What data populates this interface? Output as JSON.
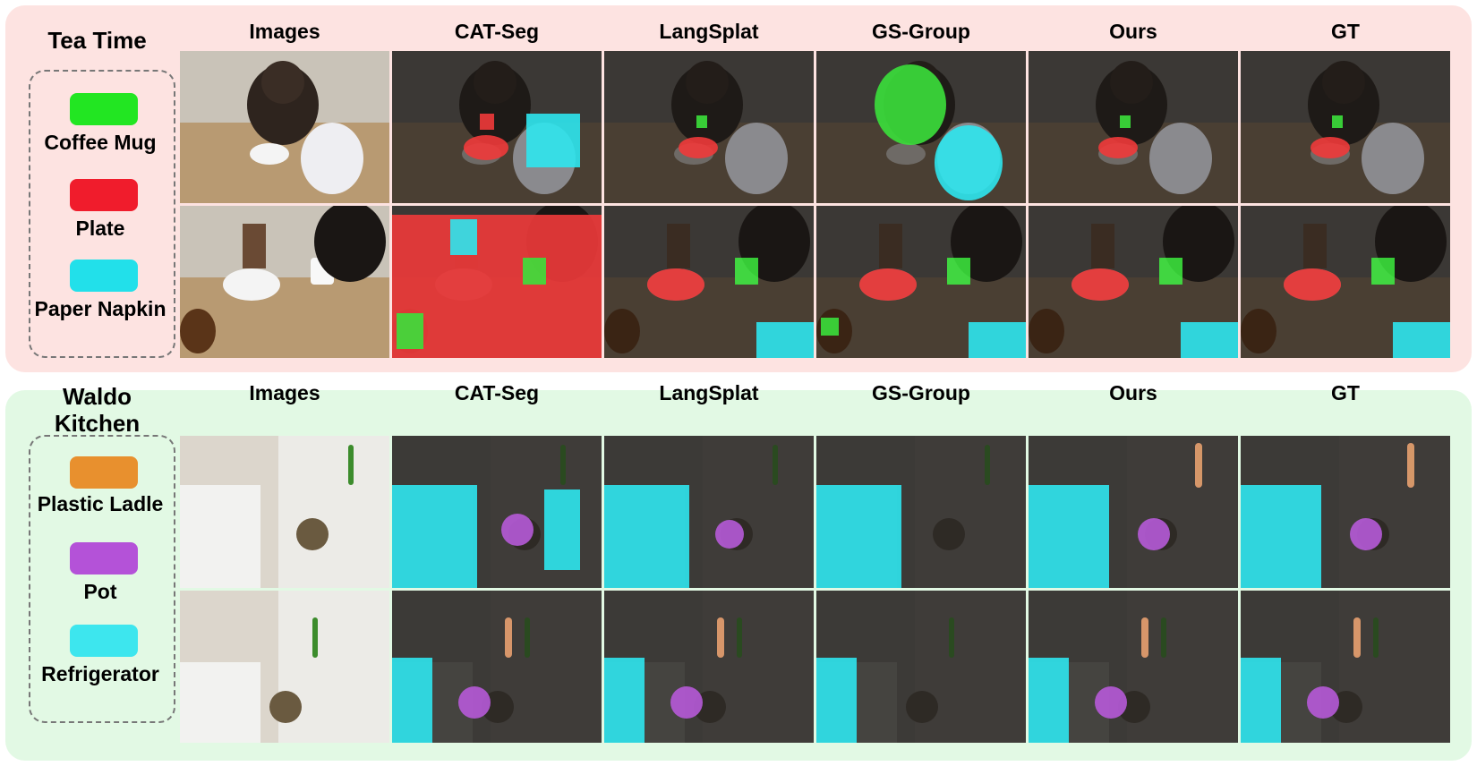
{
  "columns": [
    "Images",
    "CAT-Seg",
    "LangSplat",
    "GS-Group",
    "Ours",
    "GT"
  ],
  "scenes": [
    {
      "title": "Tea Time",
      "legend": [
        {
          "label": "Coffee Mug",
          "color": "#22e622"
        },
        {
          "label": "Plate",
          "color": "#f01c2c"
        },
        {
          "label": "Paper Napkin",
          "color": "#22e0ea"
        }
      ]
    },
    {
      "title_line1": "Waldo",
      "title_line2": "Kitchen",
      "legend": [
        {
          "label": "Plastic Ladle",
          "color": "#e8902e"
        },
        {
          "label": "Pot",
          "color": "#b452d8"
        },
        {
          "label": "Refrigerator",
          "color": "#3de6ee"
        }
      ]
    }
  ]
}
